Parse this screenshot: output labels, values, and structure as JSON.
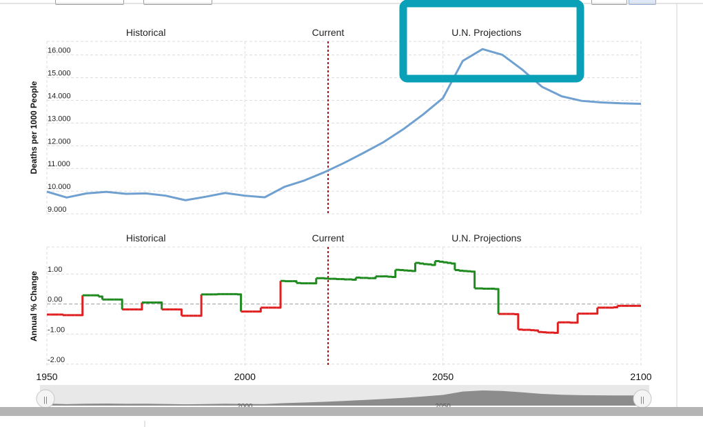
{
  "range_buttons": [
    {
      "label": ""
    },
    {
      "label": ""
    },
    {
      "label": ""
    },
    {
      "label": ""
    }
  ],
  "colors": {
    "death_rate_line": "#6fa0d0",
    "increase": "#1f8a1f",
    "decrease": "#e02020",
    "current_marker": "#b01010",
    "highlight_box": "#0aa0b8",
    "navigator_fill": "#8c8c8c"
  },
  "chart_data": [
    {
      "type": "line",
      "title": "",
      "section_labels": [
        "Historical",
        "Current",
        "U.N. Projections"
      ],
      "ylabel": "Deaths per 1000 People",
      "ylim": [
        9.0,
        16.6
      ],
      "yticks": [
        "9.000",
        "10.000",
        "11.000",
        "12.000",
        "13.000",
        "14.000",
        "15.000",
        "16.000"
      ],
      "current_year": 2021,
      "series": [
        {
          "x": [
            1950,
            1955,
            1960,
            1965,
            1970,
            1975,
            1980,
            1985,
            1990,
            1995,
            2000,
            2005,
            2010,
            2015,
            2020,
            2025,
            2030,
            2035,
            2040,
            2045,
            2050,
            2055,
            2060,
            2065,
            2070,
            2075,
            2080,
            2085,
            2090,
            2095,
            2100
          ],
          "values": [
            9.98,
            9.72,
            9.9,
            9.97,
            9.88,
            9.9,
            9.8,
            9.6,
            9.75,
            9.92,
            9.8,
            9.73,
            10.19,
            10.47,
            10.83,
            11.24,
            11.69,
            12.16,
            12.73,
            13.38,
            14.1,
            15.74,
            16.26,
            16.01,
            15.36,
            14.6,
            14.18,
            13.98,
            13.91,
            13.87,
            13.85
          ]
        }
      ]
    },
    {
      "type": "line",
      "title": "",
      "section_labels": [
        "Historical",
        "Current",
        "U.N. Projections"
      ],
      "ylabel": "Annual % Change",
      "ylim": [
        -2.05,
        1.9
      ],
      "yticks": [
        "-2.00",
        "-1.00",
        "0.00",
        "1.00"
      ],
      "current_year": 2021,
      "series": [
        {
          "x": [
            1951,
            1952,
            1953,
            1954,
            1955,
            1956,
            1957,
            1958,
            1959,
            1960,
            1961,
            1962,
            1963,
            1964,
            1965,
            1966,
            1967,
            1968,
            1969,
            1970,
            1971,
            1972,
            1973,
            1974,
            1975,
            1976,
            1977,
            1978,
            1979,
            1980,
            1981,
            1982,
            1983,
            1984,
            1985,
            1986,
            1987,
            1988,
            1989,
            1990,
            1991,
            1992,
            1993,
            1994,
            1995,
            1996,
            1997,
            1998,
            1999,
            2000,
            2001,
            2002,
            2003,
            2004,
            2005,
            2006,
            2007,
            2008,
            2009,
            2010,
            2011,
            2012,
            2013,
            2014,
            2015,
            2016,
            2017,
            2018,
            2019,
            2020,
            2021,
            2022,
            2023,
            2024,
            2025,
            2026,
            2027,
            2028,
            2029,
            2030,
            2031,
            2032,
            2033,
            2034,
            2035,
            2036,
            2037,
            2038,
            2039,
            2040,
            2041,
            2042,
            2043,
            2044,
            2045,
            2046,
            2047,
            2048,
            2049,
            2050,
            2051,
            2052,
            2053,
            2054,
            2055,
            2056,
            2057,
            2058,
            2059,
            2060,
            2061,
            2062,
            2063,
            2064,
            2065,
            2066,
            2067,
            2068,
            2069,
            2070,
            2071,
            2072,
            2073,
            2074,
            2075,
            2076,
            2077,
            2078,
            2079,
            2080,
            2081,
            2082,
            2083,
            2084,
            2085,
            2086,
            2087,
            2088,
            2089,
            2090,
            2091,
            2092,
            2093,
            2094,
            2095,
            2096,
            2097,
            2098,
            2099,
            2100
          ],
          "values": [
            -0.35,
            -0.35,
            -0.35,
            -0.35,
            -0.37,
            -0.37,
            -0.37,
            -0.37,
            -0.37,
            0.29,
            0.29,
            0.29,
            0.29,
            0.25,
            0.15,
            0.15,
            0.15,
            0.15,
            0.15,
            -0.18,
            -0.18,
            -0.18,
            -0.18,
            -0.18,
            0.05,
            0.05,
            0.05,
            0.05,
            0.05,
            -0.18,
            -0.18,
            -0.18,
            -0.18,
            -0.18,
            -0.39,
            -0.39,
            -0.39,
            -0.39,
            -0.39,
            0.32,
            0.32,
            0.32,
            0.32,
            0.33,
            0.33,
            0.33,
            0.33,
            0.33,
            0.32,
            -0.25,
            -0.25,
            -0.25,
            -0.25,
            -0.25,
            -0.12,
            -0.12,
            -0.12,
            -0.12,
            -0.12,
            0.77,
            0.76,
            0.76,
            0.76,
            0.7,
            0.69,
            0.69,
            0.69,
            0.69,
            0.86,
            0.86,
            0.85,
            0.84,
            0.84,
            0.83,
            0.83,
            0.82,
            0.82,
            0.81,
            0.88,
            0.87,
            0.87,
            0.86,
            0.86,
            0.92,
            0.92,
            0.92,
            0.91,
            0.9,
            1.14,
            1.13,
            1.12,
            1.11,
            1.1,
            1.37,
            1.35,
            1.33,
            1.32,
            1.3,
            1.43,
            1.41,
            1.39,
            1.37,
            1.35,
            1.13,
            1.11,
            1.1,
            1.09,
            1.08,
            0.52,
            0.52,
            0.51,
            0.51,
            0.51,
            0.5,
            -0.33,
            -0.33,
            -0.33,
            -0.33,
            -0.34,
            -0.85,
            -0.86,
            -0.86,
            -0.87,
            -0.88,
            -0.93,
            -0.94,
            -0.95,
            -0.95,
            -0.96,
            -0.61,
            -0.61,
            -0.61,
            -0.62,
            -0.62,
            -0.32,
            -0.32,
            -0.32,
            -0.32,
            -0.32,
            -0.12,
            -0.12,
            -0.12,
            -0.12,
            -0.11,
            -0.06,
            -0.06,
            -0.06,
            -0.06,
            -0.06,
            -0.06
          ]
        }
      ]
    }
  ],
  "x_axis": {
    "range": [
      1950,
      2100
    ],
    "ticks": [
      "1950",
      "2000",
      "2050",
      "2100"
    ]
  },
  "navigator": {
    "handle_glyph": "||",
    "tick_labels": [
      "2000",
      "2050"
    ]
  }
}
